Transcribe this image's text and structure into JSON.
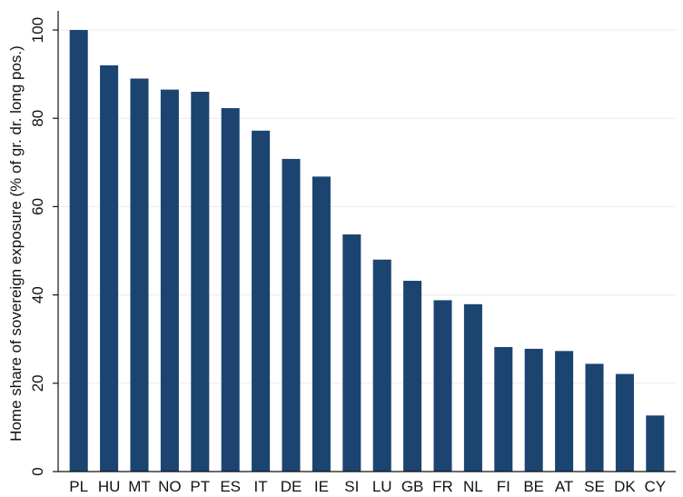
{
  "chart_data": {
    "type": "bar",
    "title": "",
    "xlabel": "",
    "ylabel": "Home share of sovereign exposure (% of gr. dr. long pos.)",
    "categories": [
      "PL",
      "HU",
      "MT",
      "NO",
      "PT",
      "ES",
      "IT",
      "DE",
      "IE",
      "SI",
      "LU",
      "GB",
      "FR",
      "NL",
      "FI",
      "BE",
      "AT",
      "SE",
      "DK",
      "CY"
    ],
    "values": [
      100,
      92,
      89,
      86.5,
      86,
      82.3,
      77.2,
      70.8,
      66.8,
      53.7,
      48,
      43.2,
      38.8,
      37.9,
      28.2,
      27.8,
      27.3,
      24.4,
      22.1,
      12.7
    ],
    "ylim": [
      0,
      100
    ],
    "yticks": [
      0,
      20,
      40,
      60,
      80,
      100
    ],
    "grid": true,
    "bar_color": "#1b4470"
  }
}
